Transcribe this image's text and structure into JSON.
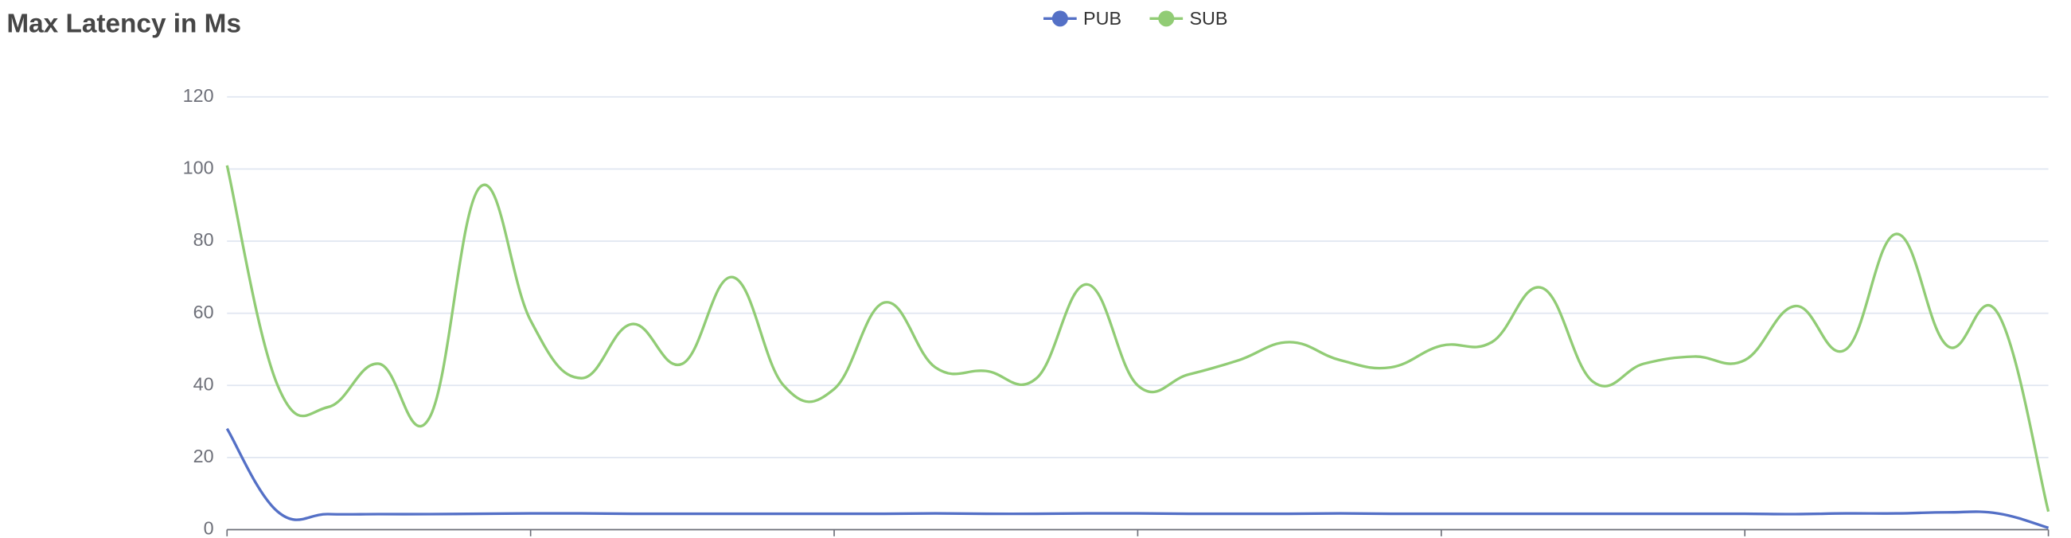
{
  "chart_data": {
    "type": "line",
    "title": "Max Latency in Ms",
    "series": [
      {
        "name": "PUB",
        "color": "#5470c6",
        "values": [
          28,
          5,
          4.3,
          4.3,
          4.3,
          4.4,
          4.5,
          4.5,
          4.4,
          4.4,
          4.4,
          4.4,
          4.4,
          4.4,
          4.5,
          4.4,
          4.4,
          4.5,
          4.5,
          4.4,
          4.4,
          4.4,
          4.5,
          4.4,
          4.4,
          4.4,
          4.4,
          4.4,
          4.4,
          4.4,
          4.4,
          4.3,
          4.5,
          4.5,
          4.8,
          4.5,
          0.5
        ]
      },
      {
        "name": "SUB",
        "color": "#91cc75",
        "values": [
          101,
          40,
          34,
          46,
          31,
          95,
          58,
          42,
          57,
          46,
          70,
          40,
          39,
          63,
          45,
          44,
          42,
          68,
          40,
          43,
          47,
          52,
          47,
          45,
          51,
          52,
          67,
          41,
          46,
          48,
          47,
          62,
          50,
          82,
          51,
          60,
          5
        ]
      }
    ],
    "ylim": [
      0,
      120
    ],
    "yticks": [
      0,
      20,
      40,
      60,
      80,
      100,
      120
    ],
    "grid": true,
    "legend": "top"
  }
}
